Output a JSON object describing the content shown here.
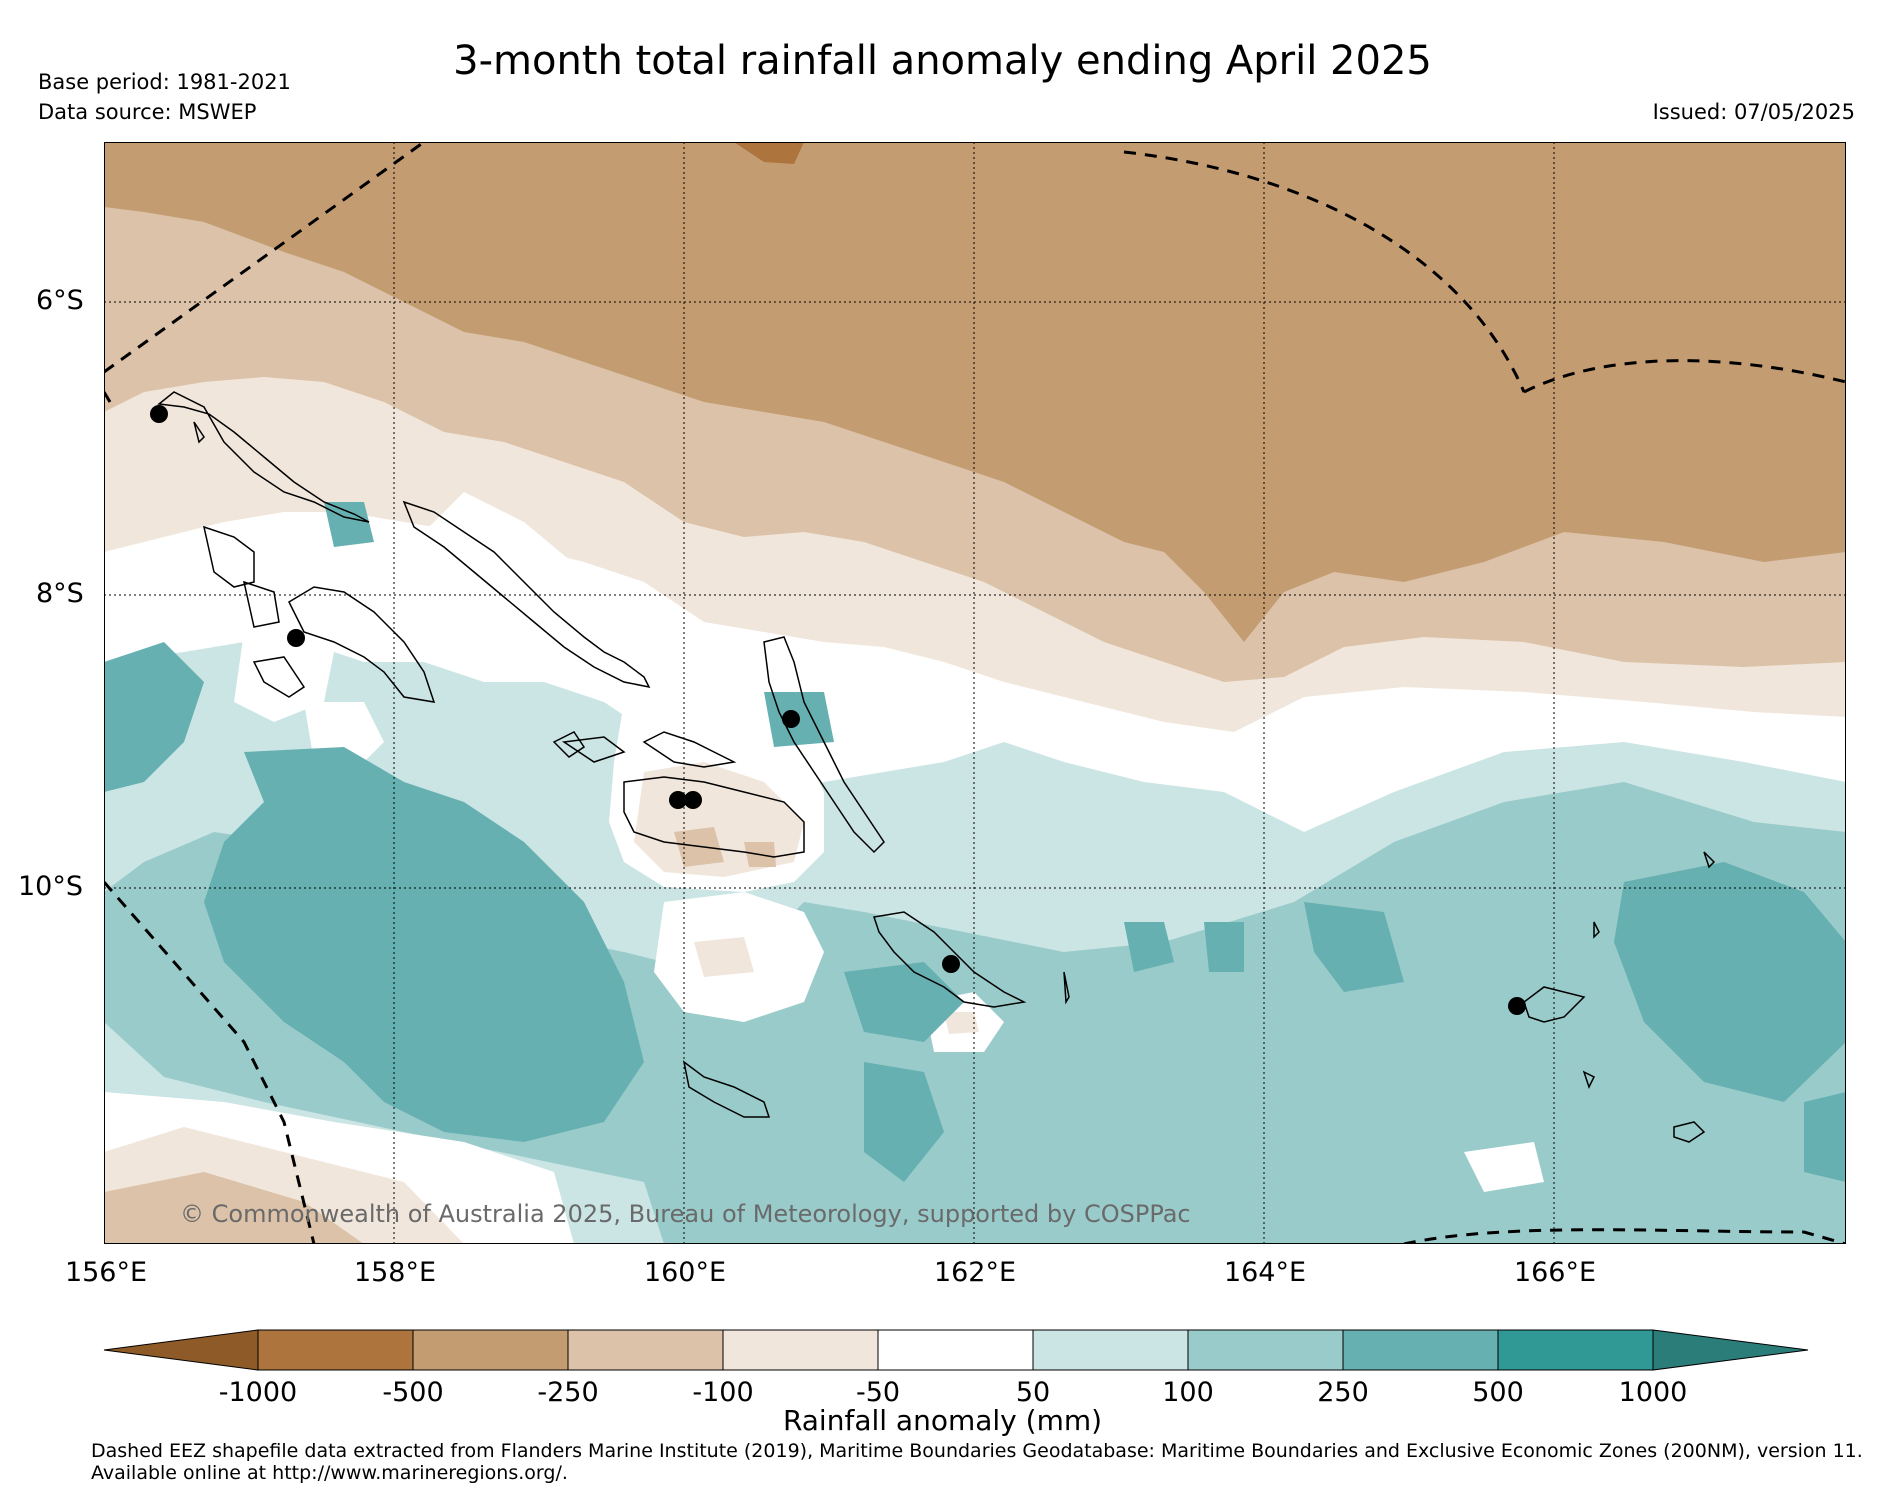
{
  "header": {
    "title": "3-month total rainfall anomaly ending April 2025",
    "base_period": "Base period: 1981-2021",
    "data_source": "Data source: MSWEP",
    "issued": "Issued: 07/05/2025"
  },
  "map": {
    "lat_labels": [
      "6°S",
      "8°S",
      "10°S"
    ],
    "lon_labels": [
      "156°E",
      "158°E",
      "160°E",
      "162°E",
      "164°E",
      "166°E"
    ],
    "copyright": "© Commonwealth of Australia 2025, Bureau of Meteorology, supported by COSPPac",
    "eez_boundaries": "dashed",
    "stations": "black dots",
    "colors": {
      "lt_minus_1000": "#8e5a28",
      "minus_1000_to_minus_500": "#ad743d",
      "minus_500_to_minus_250": "#c49c72",
      "minus_250_to_minus_100": "#dbc2a8",
      "minus_100_to_minus_50": "#f1e6db",
      "minus_50_to_50": "#ffffff",
      "50_to_100": "#cbe5e4",
      "100_to_250": "#9acbcb",
      "250_to_500": "#66b0b1",
      "500_to_1000": "#309996",
      "gt_1000": "#2a7d79"
    }
  },
  "colorbar": {
    "ticks": [
      "-1000",
      "-500",
      "-250",
      "-100",
      "-50",
      "50",
      "100",
      "250",
      "500",
      "1000"
    ],
    "label": "Rainfall anomaly (mm)"
  },
  "footer": {
    "line1": "Dashed EEZ shapefile data extracted from Flanders Marine Institute (2019), Maritime Boundaries Geodatabase: Maritime Boundaries and Exclusive Economic Zones (200NM), version 11.",
    "line2": "Available online at http://www.marineregions.org/."
  }
}
